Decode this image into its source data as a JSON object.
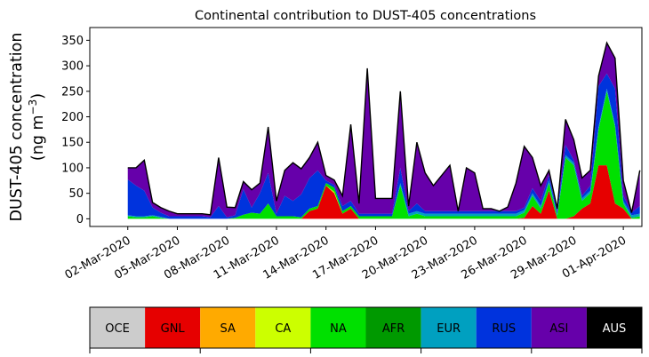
{
  "chart_data": {
    "type": "area",
    "title": "Continental contribution to DUST-405 concentrations",
    "ylabel_line1": "DUST-405 concentration",
    "ylabel_line2": "(ng m",
    "ylabel_sup": "−3",
    "ylabel_close": ")",
    "xlim_days": [
      -2.3,
      31.4
    ],
    "x_ticks": [
      "02-Mar-2020",
      "05-Mar-2020",
      "08-Mar-2020",
      "11-Mar-2020",
      "14-Mar-2020",
      "17-Mar-2020",
      "20-Mar-2020",
      "23-Mar-2020",
      "26-Mar-2020",
      "29-Mar-2020",
      "01-Apr-2020"
    ],
    "ylim": [
      -15,
      375
    ],
    "y_ticks": [
      "0",
      "50",
      "100",
      "150",
      "200",
      "250",
      "300",
      "350"
    ],
    "grid": false,
    "stack_order": [
      "OCE",
      "GNL",
      "SA",
      "CA",
      "NA",
      "AFR",
      "EUR",
      "RUS",
      "ASI",
      "AUS"
    ],
    "x": [
      0,
      0.5,
      1,
      1.5,
      2,
      2.5,
      3,
      3.5,
      4,
      4.5,
      5,
      5.5,
      6,
      6.5,
      7,
      7.5,
      8,
      8.5,
      9,
      9.5,
      10,
      10.5,
      11,
      11.5,
      12,
      12.5,
      13,
      13.5,
      14,
      14.5,
      15,
      15.5,
      16,
      16.5,
      17,
      17.5,
      18,
      18.5,
      19,
      19.5,
      20,
      20.5,
      21,
      21.5,
      22,
      22.5,
      23,
      23.5,
      24,
      24.5,
      25,
      25.5,
      26,
      26.5,
      27,
      27.5,
      28,
      28.5,
      29,
      29.5,
      30,
      30.5,
      31
    ],
    "series": [
      {
        "name": "GNL",
        "color": "#e60000",
        "values": [
          0,
          0,
          0,
          0,
          0,
          0,
          0,
          0,
          0,
          0,
          0,
          0,
          0,
          0,
          0,
          0,
          0,
          0,
          0,
          0,
          0,
          0,
          15,
          20,
          65,
          50,
          10,
          20,
          0,
          0,
          0,
          0,
          0,
          0,
          0,
          0,
          0,
          0,
          0,
          0,
          0,
          0,
          0,
          0,
          0,
          0,
          0,
          0,
          2,
          25,
          10,
          55,
          0,
          0,
          5,
          20,
          30,
          105,
          105,
          30,
          20,
          0,
          0
        ]
      },
      {
        "name": "CA",
        "color": "#ccff00",
        "values": [
          0,
          0,
          0,
          0,
          0,
          0,
          0,
          0,
          0,
          0,
          0,
          0,
          0,
          0,
          0,
          0,
          0,
          0,
          0,
          0,
          0,
          0,
          0,
          0,
          0,
          3,
          0,
          0,
          0,
          0,
          0,
          0,
          0,
          0,
          0,
          0,
          0,
          0,
          0,
          0,
          0,
          0,
          0,
          0,
          0,
          0,
          0,
          0,
          0,
          0,
          0,
          0,
          0,
          0,
          0,
          0,
          0,
          0,
          0,
          0,
          0,
          0,
          0
        ]
      },
      {
        "name": "NA",
        "color": "#00e000",
        "values": [
          5,
          3,
          3,
          5,
          2,
          0,
          0,
          0,
          0,
          0,
          0,
          0,
          0,
          2,
          8,
          12,
          10,
          30,
          5,
          5,
          5,
          3,
          5,
          5,
          5,
          8,
          5,
          5,
          5,
          5,
          5,
          5,
          5,
          65,
          5,
          10,
          5,
          5,
          5,
          5,
          5,
          5,
          5,
          5,
          5,
          5,
          5,
          5,
          10,
          20,
          10,
          15,
          5,
          120,
          100,
          15,
          20,
          70,
          145,
          150,
          10,
          2,
          5
        ]
      },
      {
        "name": "AFR",
        "color": "#009900",
        "values": [
          0,
          0,
          0,
          0,
          0,
          0,
          0,
          0,
          0,
          0,
          0,
          0,
          0,
          0,
          0,
          0,
          0,
          0,
          0,
          0,
          0,
          0,
          0,
          0,
          0,
          0,
          0,
          0,
          0,
          0,
          0,
          0,
          0,
          0,
          0,
          0,
          0,
          0,
          0,
          0,
          0,
          0,
          0,
          0,
          0,
          0,
          0,
          0,
          0,
          0,
          0,
          0,
          0,
          0,
          0,
          0,
          0,
          0,
          0,
          0,
          0,
          0,
          0
        ]
      },
      {
        "name": "EUR",
        "color": "#00a0c0",
        "values": [
          2,
          2,
          2,
          2,
          2,
          0,
          0,
          0,
          0,
          0,
          0,
          0,
          0,
          0,
          0,
          0,
          0,
          0,
          0,
          0,
          0,
          0,
          0,
          0,
          0,
          0,
          0,
          0,
          0,
          0,
          0,
          0,
          0,
          5,
          5,
          5,
          5,
          5,
          5,
          5,
          5,
          5,
          5,
          5,
          5,
          5,
          5,
          5,
          5,
          5,
          5,
          5,
          5,
          5,
          5,
          5,
          5,
          5,
          5,
          5,
          5,
          5,
          5
        ]
      },
      {
        "name": "RUS",
        "color": "#0033dd",
        "values": [
          70,
          60,
          50,
          15,
          8,
          5,
          5,
          5,
          5,
          5,
          3,
          25,
          3,
          5,
          50,
          10,
          40,
          60,
          5,
          40,
          30,
          45,
          60,
          70,
          5,
          5,
          10,
          10,
          5,
          5,
          5,
          5,
          5,
          30,
          5,
          15,
          5,
          5,
          5,
          5,
          5,
          5,
          5,
          5,
          5,
          5,
          5,
          5,
          5,
          10,
          10,
          10,
          5,
          20,
          5,
          5,
          10,
          80,
          30,
          70,
          10,
          5,
          15
        ]
      },
      {
        "name": "ASI",
        "color": "#6600aa",
        "values": [
          23,
          35,
          60,
          10,
          10,
          10,
          5,
          5,
          5,
          5,
          5,
          95,
          20,
          15,
          15,
          35,
          20,
          90,
          25,
          50,
          75,
          50,
          40,
          55,
          10,
          10,
          20,
          150,
          20,
          285,
          30,
          30,
          30,
          150,
          10,
          120,
          75,
          50,
          70,
          90,
          0,
          85,
          75,
          5,
          5,
          0,
          8,
          55,
          120,
          60,
          30,
          10,
          5,
          50,
          40,
          35,
          30,
          20,
          60,
          60,
          30,
          0,
          70
        ]
      }
    ]
  },
  "legend": {
    "items": [
      {
        "label": "OCE",
        "color": "#cccccc",
        "text_color": "#000000"
      },
      {
        "label": "GNL",
        "color": "#e60000",
        "text_color": "#000000"
      },
      {
        "label": "SA",
        "color": "#ffaa00",
        "text_color": "#000000"
      },
      {
        "label": "CA",
        "color": "#ccff00",
        "text_color": "#000000"
      },
      {
        "label": "NA",
        "color": "#00e000",
        "text_color": "#000000"
      },
      {
        "label": "AFR",
        "color": "#009900",
        "text_color": "#000000"
      },
      {
        "label": "EUR",
        "color": "#00a0c0",
        "text_color": "#000000"
      },
      {
        "label": "RUS",
        "color": "#0033dd",
        "text_color": "#000000"
      },
      {
        "label": "ASI",
        "color": "#6600aa",
        "text_color": "#000000"
      },
      {
        "label": "AUS",
        "color": "#000000",
        "text_color": "#ffffff"
      }
    ]
  }
}
